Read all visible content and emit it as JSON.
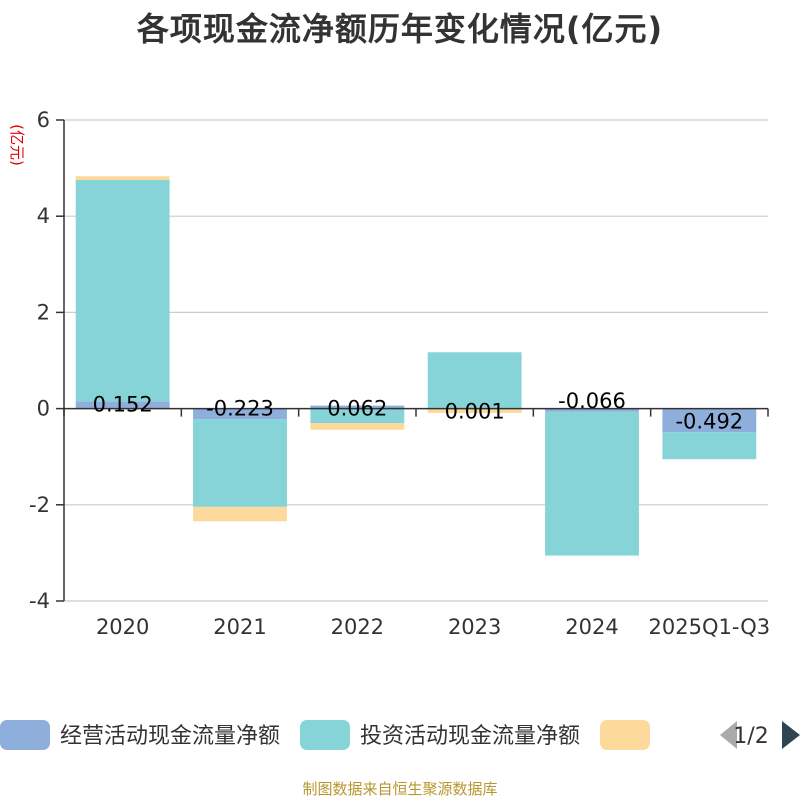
{
  "chart_data": {
    "type": "bar",
    "stacked": true,
    "title": "各项现金流净额历年变化情况(亿元)",
    "ylabel": "(亿元)",
    "ylim": [
      -4,
      6
    ],
    "yticks": [
      -4,
      -2,
      0,
      2,
      4,
      6
    ],
    "grid": true,
    "categories": [
      "2020",
      "2021",
      "2022",
      "2023",
      "2024",
      "2025Q1-Q3"
    ],
    "series": [
      {
        "name": "经营活动现金流量净额",
        "color": "#8eaedb",
        "values": [
          0.152,
          -0.223,
          0.062,
          0.001,
          -0.066,
          -0.492
        ],
        "labels": [
          "0.152",
          "-0.223",
          "0.062",
          "0.001",
          "-0.066",
          "-0.492"
        ]
      },
      {
        "name": "投资活动现金流量净额",
        "color": "#86d4d8",
        "values": [
          4.6,
          -1.82,
          -0.3,
          1.17,
          -2.99,
          -0.56
        ]
      },
      {
        "name": "",
        "color": "#fdd99b",
        "values": [
          0.08,
          -0.3,
          -0.14,
          -0.09,
          0,
          0
        ]
      }
    ],
    "legend": {
      "position": "bottom",
      "page": "1/2"
    }
  },
  "source_note": "制图数据来自恒生聚源数据库"
}
